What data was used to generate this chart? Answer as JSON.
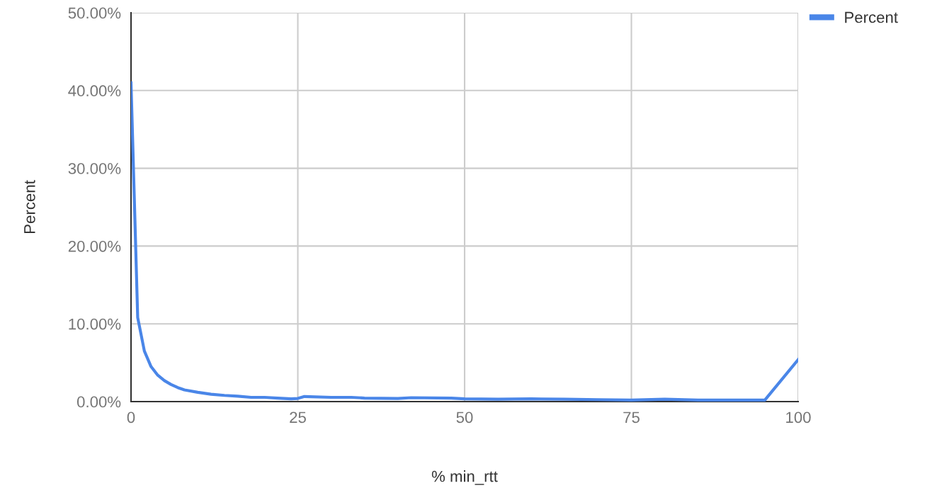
{
  "chart_data": {
    "type": "line",
    "xlabel": "% min_rtt",
    "ylabel": "Percent",
    "x": [
      0,
      1,
      2,
      3,
      4,
      5,
      6,
      7,
      8,
      10,
      12,
      14,
      16,
      18,
      20,
      22,
      24,
      25,
      26,
      30,
      33,
      35,
      40,
      42,
      48,
      50,
      55,
      60,
      65,
      70,
      75,
      80,
      85,
      90,
      95,
      100
    ],
    "series": [
      {
        "name": "Percent",
        "color": "#4a86e8",
        "values": [
          41,
          10.8,
          6.5,
          4.5,
          3.4,
          2.7,
          2.2,
          1.8,
          1.5,
          1.2,
          0.95,
          0.8,
          0.7,
          0.55,
          0.55,
          0.45,
          0.35,
          0.4,
          0.65,
          0.55,
          0.55,
          0.45,
          0.4,
          0.5,
          0.45,
          0.35,
          0.3,
          0.35,
          0.3,
          0.25,
          0.2,
          0.3,
          0.2,
          0.2,
          0.2,
          5.4
        ]
      }
    ],
    "xlim": [
      0,
      100
    ],
    "xticks": [
      0,
      25,
      50,
      75,
      100
    ],
    "ylim": [
      0,
      50
    ],
    "yticks": [
      {
        "value": 0,
        "label": "0.00%"
      },
      {
        "value": 10,
        "label": "10.00%"
      },
      {
        "value": 20,
        "label": "20.00%"
      },
      {
        "value": 30,
        "label": "30.00%"
      },
      {
        "value": 40,
        "label": "40.00%"
      },
      {
        "value": 50,
        "label": "50.00%"
      }
    ],
    "grid": true,
    "legend": "top right",
    "marker": "none",
    "line_style": "solid"
  }
}
